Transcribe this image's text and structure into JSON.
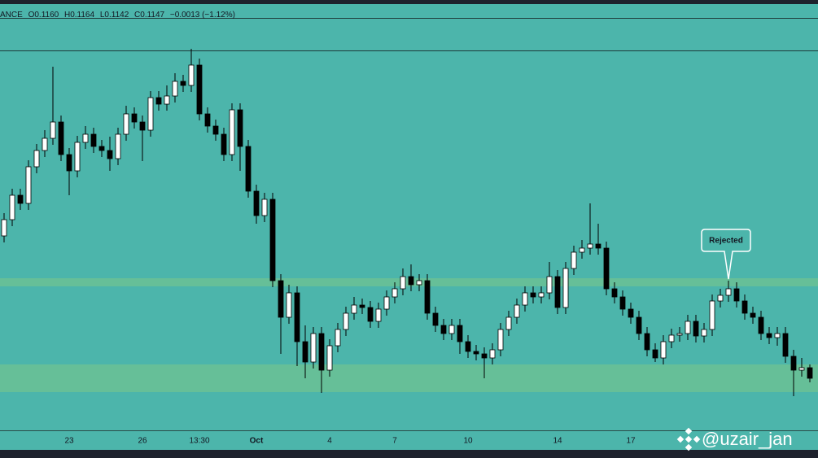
{
  "chart_data": {
    "type": "candlestick",
    "header": {
      "symbol": "ANCE",
      "open": "O0.1160",
      "high": "H0.1164",
      "low": "L0.1142",
      "close": "C0.1147",
      "change": "−0.0013 (−1.12%)"
    },
    "annotation": "Rejected",
    "watermark": "@uzair_jan",
    "up_color": "#ffffff",
    "down_color": "#000000",
    "ylim": [
      0.1082,
      0.159
    ],
    "categories": [
      null,
      null,
      null,
      null,
      null,
      null,
      null,
      null,
      "23",
      null,
      null,
      null,
      null,
      null,
      null,
      null,
      null,
      "26",
      null,
      null,
      null,
      null,
      null,
      null,
      "13:30",
      null,
      null,
      null,
      null,
      null,
      null,
      "Oct",
      null,
      null,
      null,
      null,
      null,
      null,
      null,
      null,
      "4",
      null,
      null,
      null,
      null,
      null,
      null,
      null,
      "7",
      null,
      null,
      null,
      null,
      null,
      null,
      null,
      null,
      "10",
      null,
      null,
      null,
      null,
      null,
      null,
      null,
      null,
      null,
      null,
      "14",
      null,
      null,
      null,
      null,
      null,
      null,
      null,
      null,
      "17",
      null,
      null,
      null,
      null,
      null,
      null,
      null,
      null,
      null,
      null,
      null,
      null,
      null,
      null,
      null,
      null,
      null,
      null,
      null,
      null,
      null,
      null
    ],
    "open": [
      0.1322,
      0.1342,
      0.1372,
      0.1362,
      0.1407,
      0.1427,
      0.1442,
      0.1462,
      0.1422,
      0.1402,
      0.1437,
      0.1447,
      0.1432,
      0.1427,
      0.1417,
      0.1447,
      0.1472,
      0.1462,
      0.1452,
      0.1492,
      0.1484,
      0.1494,
      0.1512,
      0.1507,
      0.1532,
      0.1472,
      0.1457,
      0.1447,
      0.1422,
      0.1477,
      0.1432,
      0.1377,
      0.1347,
      0.1367,
      0.1267,
      0.1222,
      0.1252,
      0.1192,
      0.1167,
      0.1202,
      0.1157,
      0.1187,
      0.1207,
      0.1227,
      0.1237,
      0.1234,
      0.1217,
      0.1232,
      0.1247,
      0.1257,
      0.1272,
      0.1262,
      0.1267,
      0.1227,
      0.1212,
      0.1202,
      0.1212,
      0.1192,
      0.118,
      0.1177,
      0.1172,
      0.1182,
      0.1207,
      0.1222,
      0.1237,
      0.1252,
      0.1247,
      0.1252,
      0.1272,
      0.1234,
      0.1282,
      0.1302,
      0.1307,
      0.1312,
      0.1307,
      0.1257,
      0.1247,
      0.1232,
      0.1222,
      0.1202,
      0.1182,
      0.1172,
      0.1192,
      0.12,
      0.1202,
      0.1217,
      0.1199,
      0.1207,
      0.1242,
      0.1249,
      0.1257,
      0.1242,
      0.1227,
      0.1222,
      0.1202,
      0.1197,
      0.1202,
      0.1174,
      0.1157,
      0.116
    ],
    "high": [
      0.135,
      0.138,
      0.138,
      0.1415,
      0.1435,
      0.1452,
      0.153,
      0.147,
      0.143,
      0.1445,
      0.1457,
      0.1455,
      0.144,
      0.1444,
      0.1455,
      0.1482,
      0.148,
      0.147,
      0.15,
      0.15,
      0.1507,
      0.1522,
      0.152,
      0.1552,
      0.154,
      0.148,
      0.1465,
      0.1455,
      0.1485,
      0.1485,
      0.144,
      0.1385,
      0.1375,
      0.1375,
      0.1275,
      0.1262,
      0.126,
      0.1212,
      0.121,
      0.121,
      0.1195,
      0.1215,
      0.1235,
      0.1247,
      0.1245,
      0.1242,
      0.124,
      0.1255,
      0.1265,
      0.1282,
      0.1287,
      0.1275,
      0.1275,
      0.1235,
      0.122,
      0.122,
      0.122,
      0.12,
      0.1188,
      0.1185,
      0.119,
      0.1215,
      0.123,
      0.1245,
      0.126,
      0.126,
      0.126,
      0.129,
      0.128,
      0.129,
      0.131,
      0.1317,
      0.1362,
      0.1337,
      0.1315,
      0.1265,
      0.1255,
      0.124,
      0.123,
      0.121,
      0.119,
      0.12,
      0.1208,
      0.121,
      0.1225,
      0.1225,
      0.1215,
      0.125,
      0.1257,
      0.1267,
      0.1265,
      0.125,
      0.1235,
      0.123,
      0.121,
      0.121,
      0.121,
      0.1182,
      0.1172,
      0.1164
    ],
    "low": [
      0.1314,
      0.1334,
      0.1354,
      0.1354,
      0.1399,
      0.1419,
      0.1434,
      0.1414,
      0.1372,
      0.1394,
      0.1429,
      0.1424,
      0.1419,
      0.1402,
      0.1409,
      0.1439,
      0.1454,
      0.1414,
      0.1444,
      0.1476,
      0.1476,
      0.1486,
      0.1499,
      0.1499,
      0.1464,
      0.1449,
      0.1439,
      0.1414,
      0.1414,
      0.1402,
      0.1369,
      0.1337,
      0.1339,
      0.1259,
      0.1177,
      0.1214,
      0.1162,
      0.1147,
      0.1159,
      0.1129,
      0.1149,
      0.1179,
      0.1199,
      0.1219,
      0.1226,
      0.1209,
      0.1209,
      0.1224,
      0.1239,
      0.1249,
      0.1254,
      0.1254,
      0.1219,
      0.1204,
      0.1194,
      0.1194,
      0.1177,
      0.1172,
      0.1169,
      0.1147,
      0.1164,
      0.1174,
      0.1199,
      0.1214,
      0.1229,
      0.1239,
      0.1239,
      0.1244,
      0.1226,
      0.1226,
      0.1274,
      0.1294,
      0.1299,
      0.1299,
      0.1249,
      0.1239,
      0.1224,
      0.1214,
      0.1194,
      0.1174,
      0.1167,
      0.1164,
      0.1184,
      0.1192,
      0.1194,
      0.1191,
      0.1191,
      0.1199,
      0.1234,
      0.1241,
      0.1234,
      0.1219,
      0.1214,
      0.1194,
      0.1189,
      0.1187,
      0.1166,
      0.1125,
      0.1149,
      0.1142
    ],
    "close": [
      0.1342,
      0.1372,
      0.1362,
      0.1407,
      0.1427,
      0.1442,
      0.1462,
      0.1422,
      0.1402,
      0.1437,
      0.1447,
      0.1432,
      0.1427,
      0.1417,
      0.1447,
      0.1472,
      0.1462,
      0.1452,
      0.1492,
      0.1484,
      0.1494,
      0.1512,
      0.1507,
      0.1532,
      0.1472,
      0.1457,
      0.1447,
      0.1422,
      0.1477,
      0.1432,
      0.1377,
      0.1347,
      0.1367,
      0.1267,
      0.1222,
      0.1252,
      0.1192,
      0.1167,
      0.1202,
      0.1157,
      0.1187,
      0.1207,
      0.1227,
      0.1237,
      0.1234,
      0.1217,
      0.1232,
      0.1247,
      0.1257,
      0.1272,
      0.1262,
      0.1267,
      0.1227,
      0.1212,
      0.1202,
      0.1212,
      0.1192,
      0.118,
      0.1177,
      0.1172,
      0.1182,
      0.1207,
      0.1222,
      0.1237,
      0.1252,
      0.1247,
      0.1252,
      0.1272,
      0.1234,
      0.1282,
      0.1302,
      0.1307,
      0.1312,
      0.1307,
      0.1257,
      0.1247,
      0.1232,
      0.1222,
      0.1202,
      0.1182,
      0.1172,
      0.1192,
      0.12,
      0.1202,
      0.1217,
      0.1199,
      0.1207,
      0.1242,
      0.1249,
      0.1257,
      0.1242,
      0.1227,
      0.1222,
      0.1202,
      0.1197,
      0.1202,
      0.1174,
      0.1157,
      0.116,
      0.1147
    ]
  }
}
